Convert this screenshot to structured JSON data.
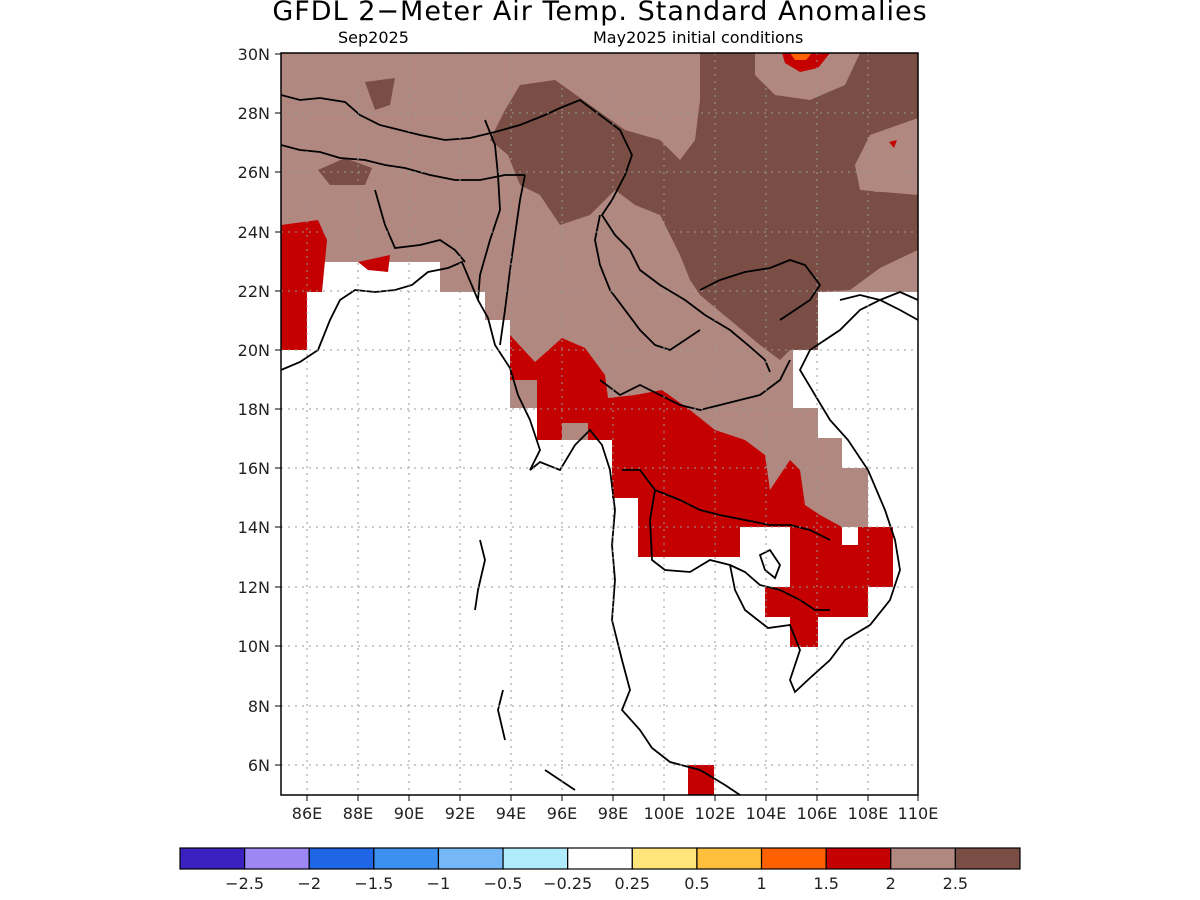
{
  "title": "GFDL 2−Meter Air Temp. Standard Anomalies",
  "subtitle_left": "Sep2025",
  "subtitle_right": "May2025 initial conditions",
  "map": {
    "lat_range": [
      5,
      30
    ],
    "lon_range": [
      85,
      110
    ],
    "lat_labels": [
      "6N",
      "8N",
      "10N",
      "12N",
      "14N",
      "16N",
      "18N",
      "20N",
      "22N",
      "24N",
      "26N",
      "28N",
      "30N"
    ],
    "lon_labels": [
      "86E",
      "88E",
      "90E",
      "92E",
      "94E",
      "96E",
      "98E",
      "100E",
      "102E",
      "104E",
      "106E",
      "108E",
      "110E"
    ],
    "grid": true
  },
  "colorbar": {
    "colors": [
      "#3b22c0",
      "#9d87f5",
      "#1f66e6",
      "#3c91f0",
      "#76b7f7",
      "#b0ecfb",
      "#ffffff",
      "#ffe57a",
      "#ffbe3b",
      "#ff6000",
      "#c40000",
      "#b08880",
      "#7a4e45"
    ],
    "labels": [
      "−2.5",
      "−2",
      "−1.5",
      "−1",
      "−0.5",
      "−0.25",
      "0.25",
      "0.5",
      "1",
      "1.5",
      "2",
      "2.5"
    ]
  }
}
